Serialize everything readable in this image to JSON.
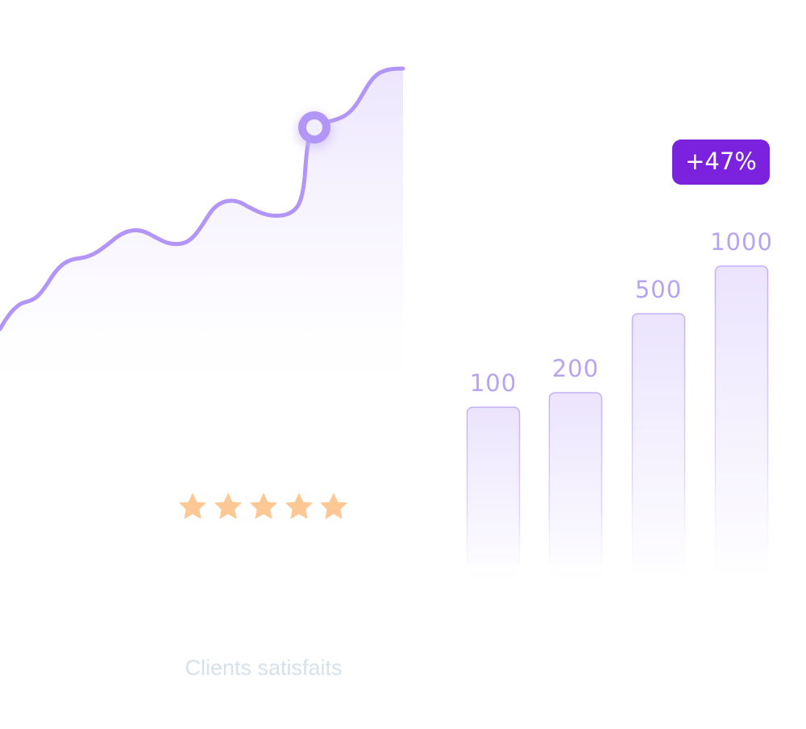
{
  "badge": "+47%",
  "bars": [
    {
      "label": "100"
    },
    {
      "label": "200"
    },
    {
      "label": "500"
    },
    {
      "label": "1000"
    }
  ],
  "caption": "Clients satisfaits"
}
